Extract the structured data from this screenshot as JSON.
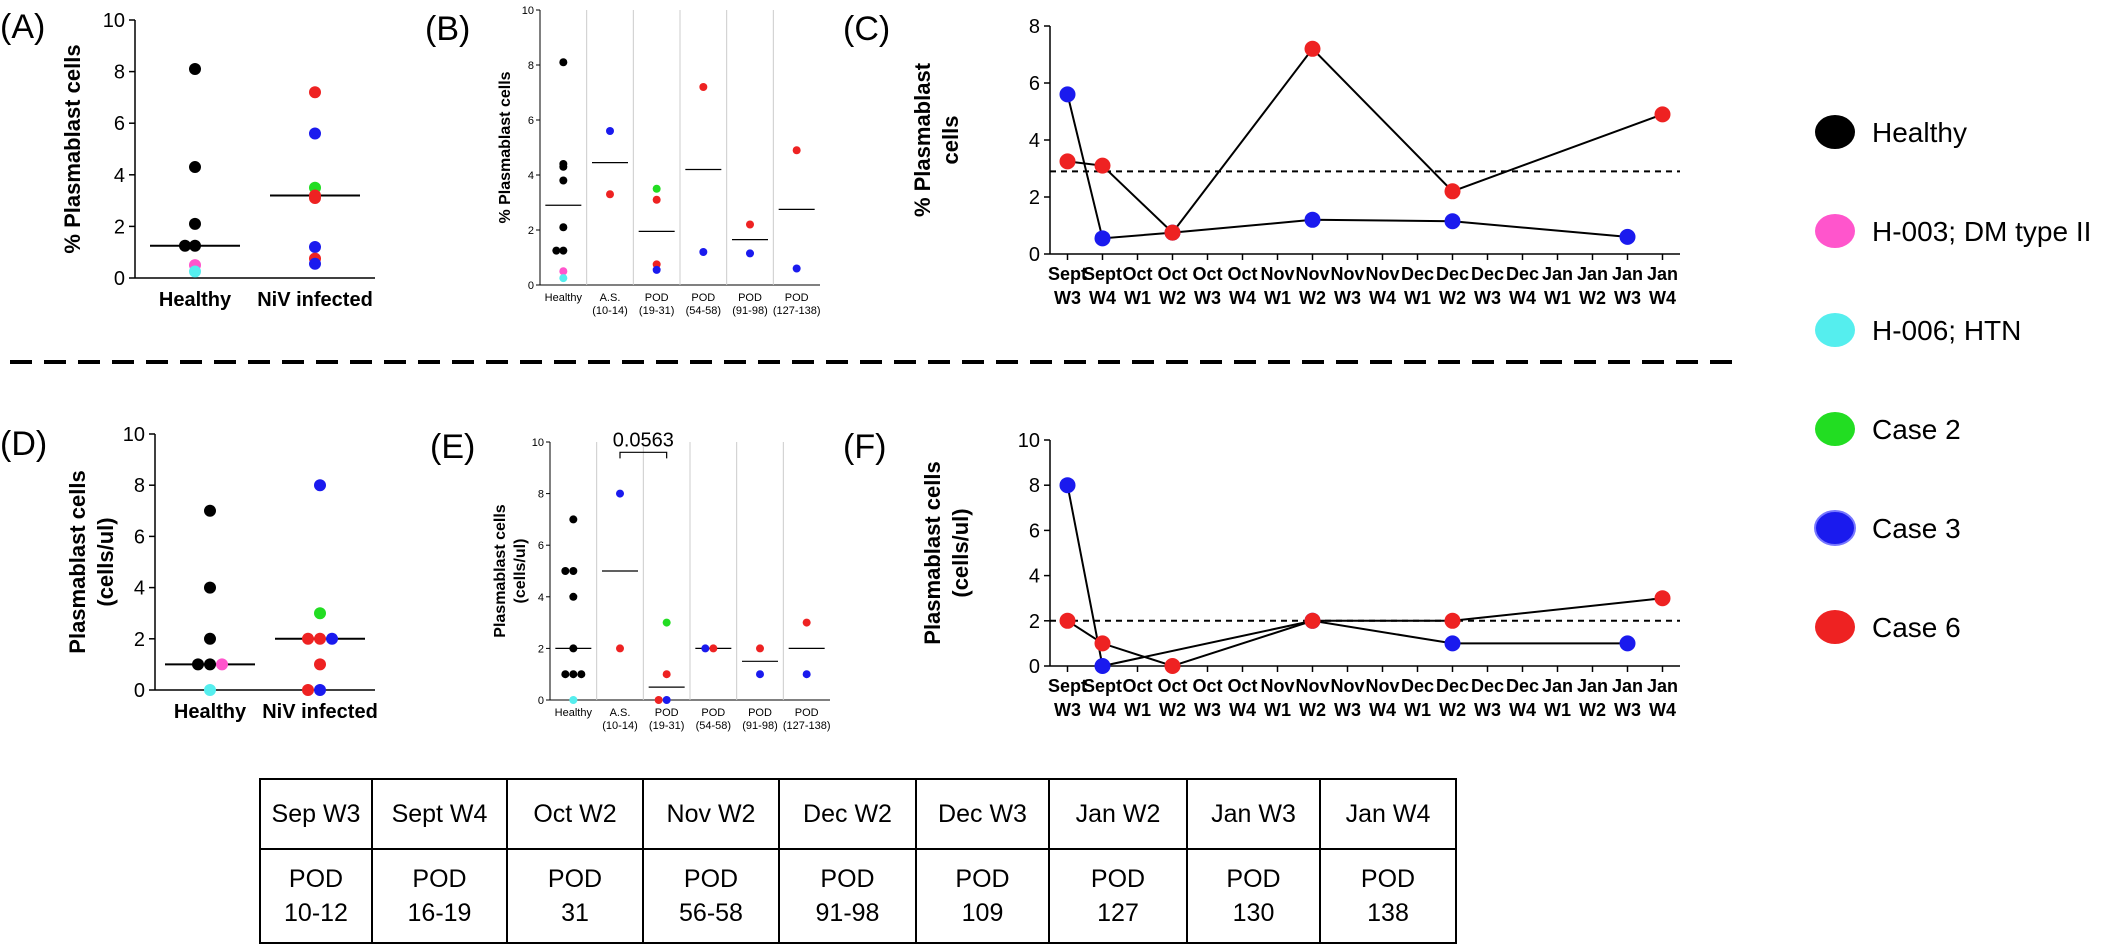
{
  "panel_labels": [
    "(A)",
    "(B)",
    "(C)",
    "(D)",
    "(E)",
    "(F)"
  ],
  "colors": {
    "Healthy": "#000000",
    "H-003; DM type II": "#ff55cc",
    "H-006; HTN": "#55eeee",
    "Case 2": "#22dd22",
    "Case 3": "#1a1aee",
    "Case 6": "#ee2222",
    "line": "#000000"
  },
  "legend": {
    "entries": [
      "Healthy",
      "H-003; DM type II",
      "H-006; HTN",
      "Case 2",
      "Case 3",
      "Case 6"
    ]
  },
  "chart_data": [
    {
      "panel": "(A)",
      "type": "scatter",
      "ylabel": "% Plasmablast cells",
      "ylim": [
        0,
        10
      ],
      "yticks": [
        0,
        2,
        4,
        6,
        8,
        10
      ],
      "categories": [
        "Healthy",
        "NiV infected"
      ],
      "medians": [
        1.25,
        3.2
      ],
      "points": [
        {
          "cat": "Healthy",
          "y": 8.1,
          "group": "Healthy"
        },
        {
          "cat": "Healthy",
          "y": 4.3,
          "group": "Healthy"
        },
        {
          "cat": "Healthy",
          "y": 2.1,
          "group": "Healthy"
        },
        {
          "cat": "Healthy",
          "y": 1.25,
          "group": "Healthy"
        },
        {
          "cat": "Healthy",
          "y": 1.25,
          "group": "Healthy"
        },
        {
          "cat": "Healthy",
          "y": 0.5,
          "group": "H-003; DM type II"
        },
        {
          "cat": "Healthy",
          "y": 0.25,
          "group": "H-006; HTN"
        },
        {
          "cat": "NiV infected",
          "y": 7.2,
          "group": "Case 6"
        },
        {
          "cat": "NiV infected",
          "y": 5.6,
          "group": "Case 3"
        },
        {
          "cat": "NiV infected",
          "y": 3.5,
          "group": "Case 2"
        },
        {
          "cat": "NiV infected",
          "y": 3.2,
          "group": "Case 6"
        },
        {
          "cat": "NiV infected",
          "y": 3.1,
          "group": "Case 6"
        },
        {
          "cat": "NiV infected",
          "y": 1.2,
          "group": "Case 3"
        },
        {
          "cat": "NiV infected",
          "y": 0.75,
          "group": "Case 6"
        },
        {
          "cat": "NiV infected",
          "y": 0.55,
          "group": "Case 3"
        }
      ]
    },
    {
      "panel": "(B)",
      "type": "scatter",
      "ylabel": "% Plasmablast cells",
      "ylim": [
        0,
        10
      ],
      "yticks": [
        0,
        2,
        4,
        6,
        8,
        10
      ],
      "categories": [
        "Healthy",
        "A.S.|(10-14)",
        "POD|(19-31)",
        "POD|(54-58)",
        "POD|(91-98)",
        "POD|(127-138)"
      ],
      "medians": [
        2.9,
        4.45,
        1.95,
        4.2,
        1.65,
        2.75
      ],
      "points": [
        {
          "cat": "Healthy",
          "y": 8.1,
          "group": "Healthy"
        },
        {
          "cat": "Healthy",
          "y": 4.4,
          "group": "Healthy"
        },
        {
          "cat": "Healthy",
          "y": 4.3,
          "group": "Healthy"
        },
        {
          "cat": "Healthy",
          "y": 3.8,
          "group": "Healthy"
        },
        {
          "cat": "Healthy",
          "y": 2.1,
          "group": "Healthy"
        },
        {
          "cat": "Healthy",
          "y": 1.25,
          "group": "Healthy"
        },
        {
          "cat": "Healthy",
          "y": 1.25,
          "group": "Healthy"
        },
        {
          "cat": "Healthy",
          "y": 0.5,
          "group": "H-003; DM type II"
        },
        {
          "cat": "Healthy",
          "y": 0.25,
          "group": "H-006; HTN"
        },
        {
          "cat": "A.S.|(10-14)",
          "y": 5.6,
          "group": "Case 3"
        },
        {
          "cat": "A.S.|(10-14)",
          "y": 3.3,
          "group": "Case 6"
        },
        {
          "cat": "POD|(19-31)",
          "y": 3.5,
          "group": "Case 2"
        },
        {
          "cat": "POD|(19-31)",
          "y": 3.1,
          "group": "Case 6"
        },
        {
          "cat": "POD|(19-31)",
          "y": 0.75,
          "group": "Case 6"
        },
        {
          "cat": "POD|(19-31)",
          "y": 0.55,
          "group": "Case 3"
        },
        {
          "cat": "POD|(54-58)",
          "y": 7.2,
          "group": "Case 6"
        },
        {
          "cat": "POD|(54-58)",
          "y": 1.2,
          "group": "Case 3"
        },
        {
          "cat": "POD|(91-98)",
          "y": 2.2,
          "group": "Case 6"
        },
        {
          "cat": "POD|(91-98)",
          "y": 1.15,
          "group": "Case 3"
        },
        {
          "cat": "POD|(127-138)",
          "y": 4.9,
          "group": "Case 6"
        },
        {
          "cat": "POD|(127-138)",
          "y": 0.6,
          "group": "Case 3"
        }
      ]
    },
    {
      "panel": "(C)",
      "type": "line",
      "ylabel": "% Plasmablast|cells",
      "ylim": [
        0,
        8
      ],
      "yticks": [
        0,
        2,
        4,
        6,
        8
      ],
      "reference_line": 2.9,
      "x": [
        "Sept|W3",
        "Sept|W4",
        "Oct|W1",
        "Oct|W2",
        "Oct|W3",
        "Oct|W4",
        "Nov|W1",
        "Nov|W2",
        "Nov|W3",
        "Nov|W4",
        "Dec|W1",
        "Dec|W2",
        "Dec|W3",
        "Dec|W4",
        "Jan|W1",
        "Jan|W2",
        "Jan|W3",
        "Jan|W4"
      ],
      "series": [
        {
          "group": "Case 3",
          "points": [
            [
              "Sept|W3",
              5.6
            ],
            [
              "Sept|W4",
              0.55
            ],
            [
              "Oct|W2",
              0.75
            ],
            [
              "Nov|W2",
              1.2
            ],
            [
              "Dec|W2",
              1.15
            ],
            [
              "Jan|W3",
              0.6
            ]
          ]
        },
        {
          "group": "Case 6",
          "points": [
            [
              "Sept|W3",
              3.25
            ],
            [
              "Sept|W4",
              3.1
            ],
            [
              "Oct|W2",
              0.75
            ],
            [
              "Nov|W2",
              7.2
            ],
            [
              "Dec|W2",
              2.2
            ],
            [
              "Jan|W4",
              4.9
            ]
          ]
        }
      ]
    },
    {
      "panel": "(D)",
      "type": "scatter",
      "ylabel": "Plasmablast cells|(cells/ul)",
      "ylim": [
        0,
        10
      ],
      "yticks": [
        0,
        2,
        4,
        6,
        8,
        10
      ],
      "categories": [
        "Healthy",
        "NiV infected"
      ],
      "medians": [
        1,
        2
      ],
      "points": [
        {
          "cat": "Healthy",
          "y": 7,
          "group": "Healthy"
        },
        {
          "cat": "Healthy",
          "y": 4,
          "group": "Healthy"
        },
        {
          "cat": "Healthy",
          "y": 2,
          "group": "Healthy"
        },
        {
          "cat": "Healthy",
          "y": 1,
          "group": "Healthy"
        },
        {
          "cat": "Healthy",
          "y": 1,
          "group": "Healthy"
        },
        {
          "cat": "Healthy",
          "y": 1,
          "group": "H-003; DM type II"
        },
        {
          "cat": "Healthy",
          "y": 0,
          "group": "H-006; HTN"
        },
        {
          "cat": "NiV infected",
          "y": 8,
          "group": "Case 3"
        },
        {
          "cat": "NiV infected",
          "y": 3,
          "group": "Case 2"
        },
        {
          "cat": "NiV infected",
          "y": 2,
          "group": "Case 6"
        },
        {
          "cat": "NiV infected",
          "y": 2,
          "group": "Case 6"
        },
        {
          "cat": "NiV infected",
          "y": 2,
          "group": "Case 3"
        },
        {
          "cat": "NiV infected",
          "y": 1,
          "group": "Case 6"
        },
        {
          "cat": "NiV infected",
          "y": 0,
          "group": "Case 3"
        },
        {
          "cat": "NiV infected",
          "y": 0,
          "group": "Case 6"
        }
      ]
    },
    {
      "panel": "(E)",
      "type": "scatter",
      "ylabel": "Plasmablast cells|(cells/ul)",
      "ylim": [
        0,
        10
      ],
      "yticks": [
        0,
        2,
        4,
        6,
        8,
        10
      ],
      "categories": [
        "Healthy",
        "A.S.|(10-14)",
        "POD|(19-31)",
        "POD|(54-58)",
        "POD|(91-98)",
        "POD|(127-138)"
      ],
      "medians": [
        2,
        5,
        0.5,
        2,
        1.5,
        2
      ],
      "annotation": {
        "text": "0.0563",
        "from": "A.S.|(10-14)",
        "to": "POD|(19-31)",
        "y": 9.6
      },
      "points": [
        {
          "cat": "Healthy",
          "y": 7,
          "group": "Healthy"
        },
        {
          "cat": "Healthy",
          "y": 5,
          "group": "Healthy"
        },
        {
          "cat": "Healthy",
          "y": 5,
          "group": "Healthy"
        },
        {
          "cat": "Healthy",
          "y": 4,
          "group": "Healthy"
        },
        {
          "cat": "Healthy",
          "y": 2,
          "group": "Healthy"
        },
        {
          "cat": "Healthy",
          "y": 1,
          "group": "Healthy"
        },
        {
          "cat": "Healthy",
          "y": 1,
          "group": "Healthy"
        },
        {
          "cat": "Healthy",
          "y": 1,
          "group": "Healthy"
        },
        {
          "cat": "Healthy",
          "y": 0,
          "group": "H-006; HTN"
        },
        {
          "cat": "A.S.|(10-14)",
          "y": 8,
          "group": "Case 3"
        },
        {
          "cat": "A.S.|(10-14)",
          "y": 2,
          "group": "Case 6"
        },
        {
          "cat": "POD|(19-31)",
          "y": 3,
          "group": "Case 2"
        },
        {
          "cat": "POD|(19-31)",
          "y": 1,
          "group": "Case 6"
        },
        {
          "cat": "POD|(19-31)",
          "y": 0,
          "group": "Case 3"
        },
        {
          "cat": "POD|(19-31)",
          "y": 0,
          "group": "Case 6"
        },
        {
          "cat": "POD|(54-58)",
          "y": 2,
          "group": "Case 6"
        },
        {
          "cat": "POD|(54-58)",
          "y": 2,
          "group": "Case 3"
        },
        {
          "cat": "POD|(91-98)",
          "y": 2,
          "group": "Case 6"
        },
        {
          "cat": "POD|(91-98)",
          "y": 1,
          "group": "Case 3"
        },
        {
          "cat": "POD|(127-138)",
          "y": 3,
          "group": "Case 6"
        },
        {
          "cat": "POD|(127-138)",
          "y": 1,
          "group": "Case 3"
        }
      ]
    },
    {
      "panel": "(F)",
      "type": "line",
      "ylabel": "Plasmablast cells|(cells/ul)",
      "ylim": [
        0,
        10
      ],
      "yticks": [
        0,
        2,
        4,
        6,
        8,
        10
      ],
      "reference_line": 2,
      "x": [
        "Sept|W3",
        "Sept|W4",
        "Oct|W1",
        "Oct|W2",
        "Oct|W3",
        "Oct|W4",
        "Nov|W1",
        "Nov|W2",
        "Nov|W3",
        "Nov|W4",
        "Dec|W1",
        "Dec|W2",
        "Dec|W3",
        "Dec|W4",
        "Jan|W1",
        "Jan|W2",
        "Jan|W3",
        "Jan|W4"
      ],
      "series": [
        {
          "group": "Case 3",
          "points": [
            [
              "Sept|W3",
              8
            ],
            [
              "Sept|W4",
              0
            ],
            [
              "Nov|W2",
              2
            ],
            [
              "Dec|W2",
              1
            ],
            [
              "Jan|W3",
              1
            ]
          ]
        },
        {
          "group": "Case 6",
          "points": [
            [
              "Sept|W3",
              2
            ],
            [
              "Sept|W4",
              1
            ],
            [
              "Oct|W2",
              0
            ],
            [
              "Nov|W2",
              2
            ],
            [
              "Dec|W2",
              2
            ],
            [
              "Jan|W4",
              3
            ]
          ]
        }
      ]
    }
  ],
  "pod_table": {
    "headers": [
      "Sep W3",
      "Sept W4",
      "Oct W2",
      "Nov W2",
      "Dec W2",
      "Dec W3",
      "Jan W2",
      "Jan W3",
      "Jan W4"
    ],
    "row_label": "POD",
    "values": [
      "10-12",
      "16-19",
      "31",
      "56-58",
      "91-98",
      "109",
      "127",
      "130",
      "138"
    ]
  }
}
